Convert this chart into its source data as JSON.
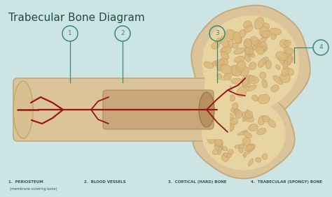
{
  "title": "Trabecular Bone Diagram",
  "title_color": "#1e4d40",
  "title_fontsize": 11,
  "background_color": "#cde4e5",
  "label_color": "#3a8a78",
  "legend_items": [
    {
      "num": "1.",
      "label": "PERIOSTEUM",
      "sublabel": "(membrane covering bone)"
    },
    {
      "num": "2.",
      "label": "BLOOD VESSELS",
      "sublabel": ""
    },
    {
      "num": "3.",
      "label": "CORTICAL (HARD) BONE",
      "sublabel": ""
    },
    {
      "num": "4.",
      "label": "TRABECULAR (SPONGY) BONE",
      "sublabel": ""
    }
  ],
  "circle_color": "#3a8a78",
  "line_color": "#3a8a78",
  "bone_cortical": "#dcc49a",
  "bone_inner_light": "#ede0c4",
  "bone_spongy_fill": "#dab87a",
  "bone_spongy_bg": "#e8d4a0",
  "blood_vessel_color": "#9b1515",
  "bone_edge": "#c4a878"
}
